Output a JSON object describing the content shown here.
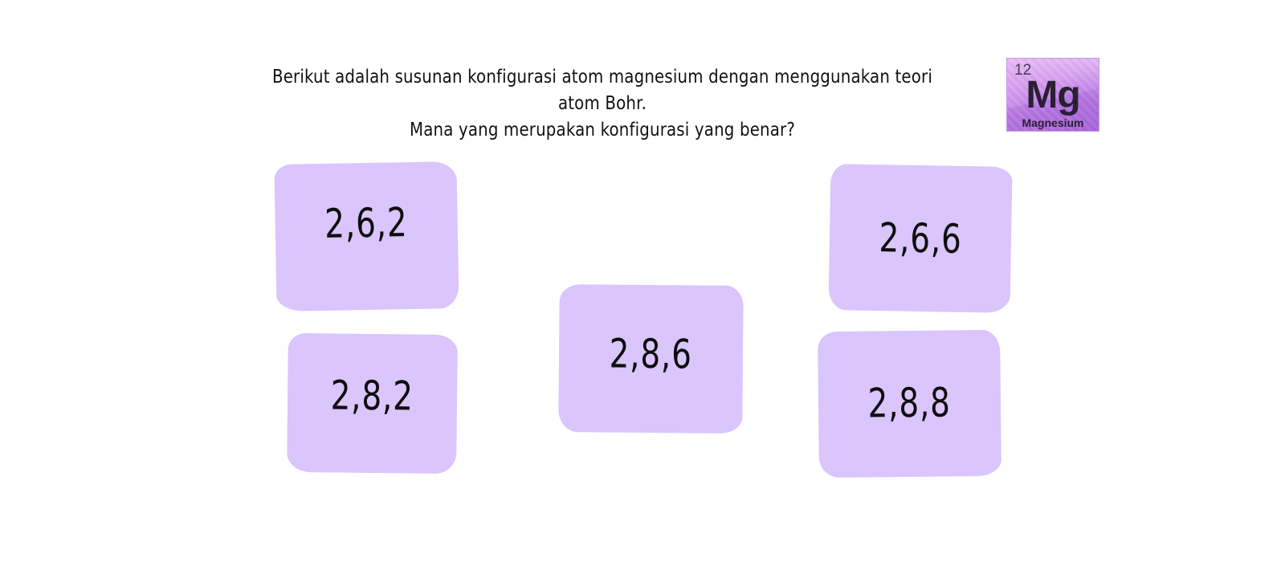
{
  "question": {
    "line1": "Berikut adalah susunan konfigurasi atom magnesium dengan menggunakan teori atom Bohr.",
    "line2": "Mana yang merupakan konfigurasi yang benar?"
  },
  "element": {
    "atomic_number": "12",
    "symbol": "Mg",
    "name": "Magnesium",
    "icon": "magnesium-element-tile-icon"
  },
  "options": [
    {
      "label": "2,6,2"
    },
    {
      "label": "2,6,6"
    },
    {
      "label": "2,8,6"
    },
    {
      "label": "2,8,2"
    },
    {
      "label": "2,8,8"
    }
  ],
  "colors": {
    "card_fill": "#dac5fc",
    "text": "#0d0d0d",
    "background": "#ffffff"
  }
}
